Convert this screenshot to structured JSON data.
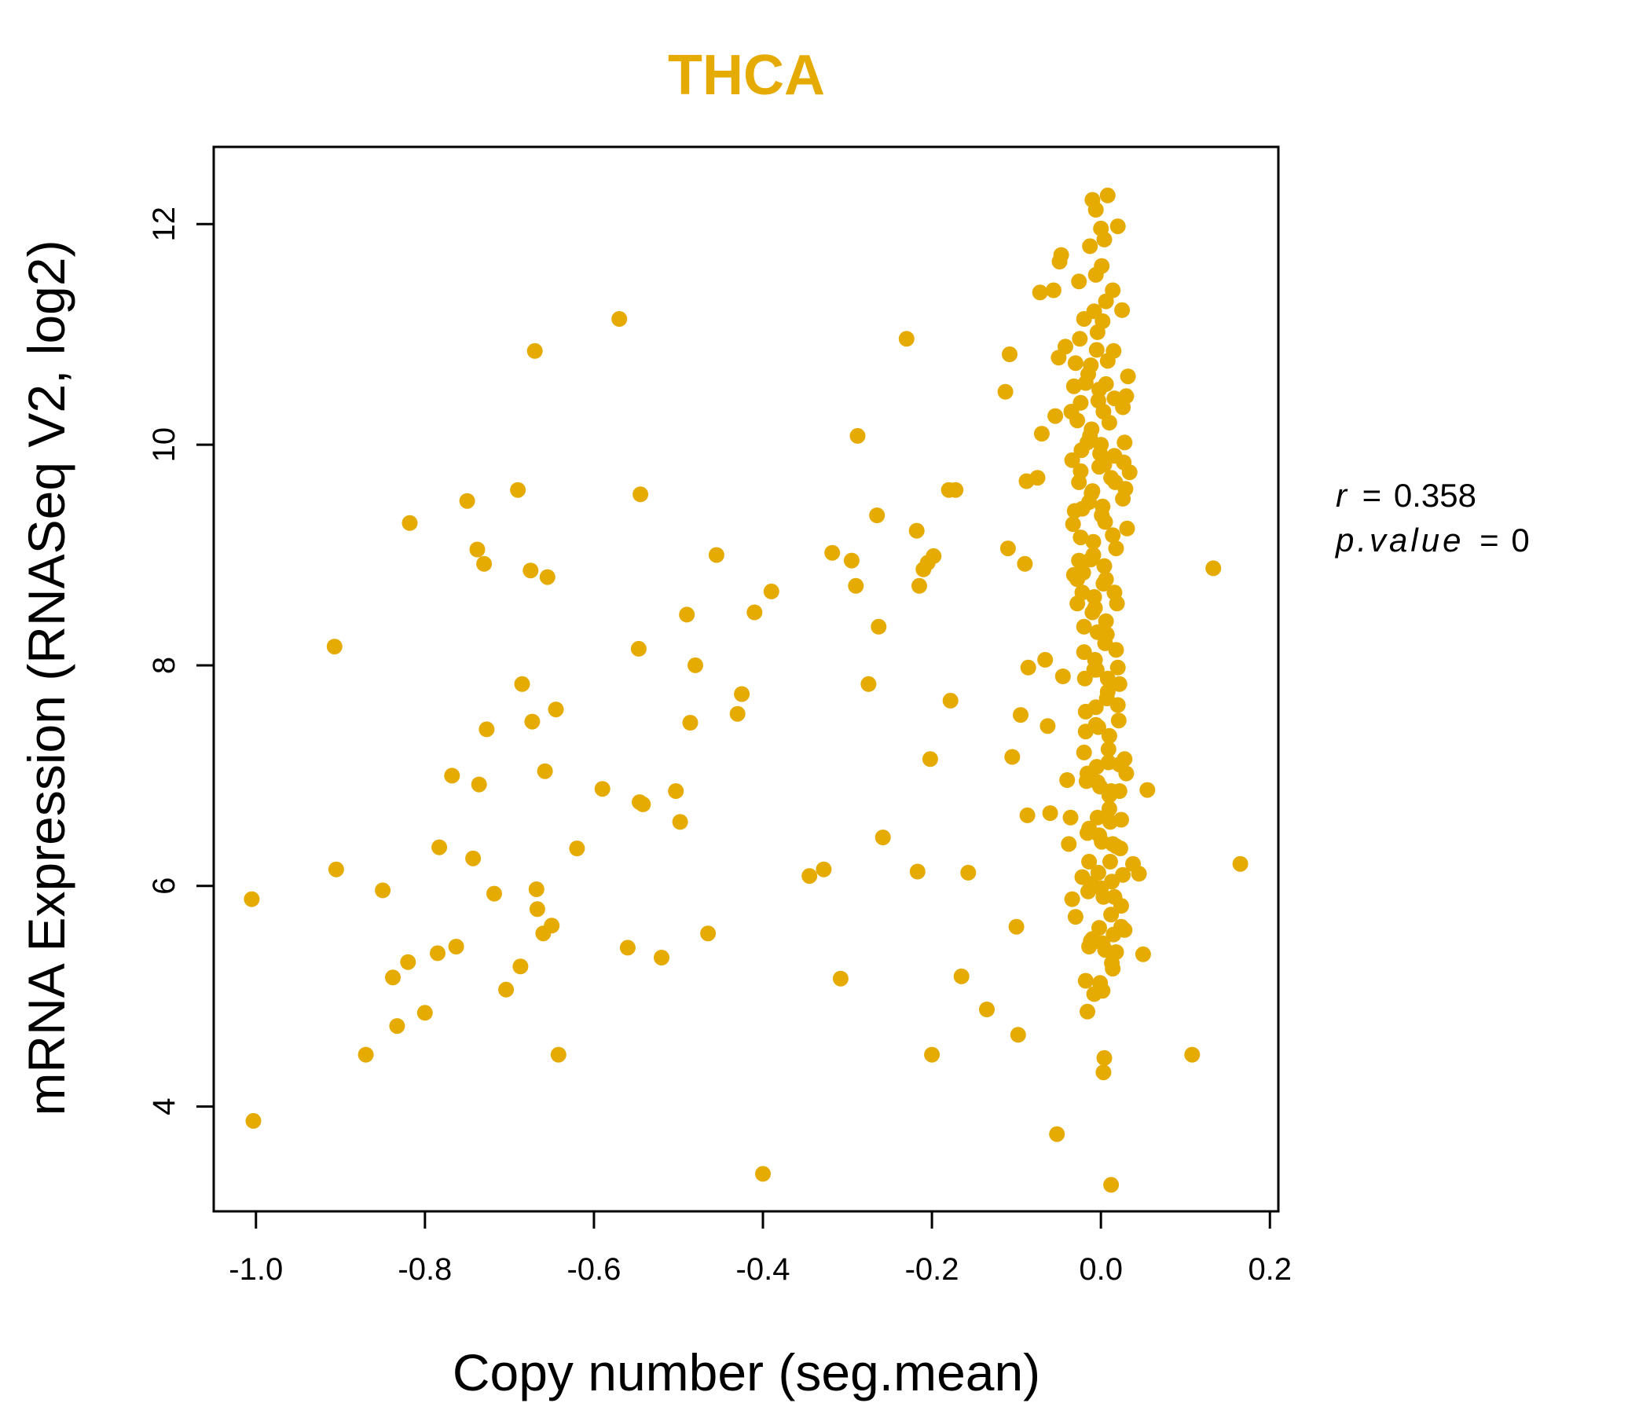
{
  "chart_data": {
    "type": "scatter",
    "title": "THCA",
    "xlabel": "Copy number (seg.mean)",
    "ylabel": "mRNA Expression (RNASeq V2, log2)",
    "xlim": [
      -1.05,
      0.21
    ],
    "ylim": [
      3.05,
      12.7
    ],
    "x_ticks": [
      -1.0,
      -0.8,
      -0.6,
      -0.4,
      -0.2,
      0.0,
      0.2
    ],
    "x_tick_labels": [
      "-1.0",
      "-0.8",
      "-0.6",
      "-0.4",
      "-0.2",
      "0.0",
      "0.2"
    ],
    "y_ticks": [
      4,
      6,
      8,
      10,
      12
    ],
    "y_tick_labels": [
      "4",
      "6",
      "8",
      "10",
      "12"
    ],
    "grid": false,
    "legend": "none",
    "point_color": "#E6AB02",
    "title_color": "#E6AB02",
    "annotation": {
      "r_symbol": "r",
      "r_value": "0.358",
      "p_symbol": "p.value",
      "p_value": "0",
      "equals": "="
    },
    "points": [
      [
        -1.005,
        5.88
      ],
      [
        -1.003,
        3.87
      ],
      [
        -0.907,
        8.17
      ],
      [
        -0.905,
        6.15
      ],
      [
        -0.87,
        4.47
      ],
      [
        -0.85,
        5.96
      ],
      [
        -0.838,
        5.17
      ],
      [
        -0.833,
        4.73
      ],
      [
        -0.82,
        5.31
      ],
      [
        -0.818,
        9.29
      ],
      [
        -0.8,
        4.85
      ],
      [
        -0.785,
        5.39
      ],
      [
        -0.783,
        6.35
      ],
      [
        -0.768,
        7.0
      ],
      [
        -0.763,
        5.45
      ],
      [
        -0.75,
        9.49
      ],
      [
        -0.743,
        6.25
      ],
      [
        -0.738,
        9.05
      ],
      [
        -0.736,
        6.92
      ],
      [
        -0.73,
        8.92
      ],
      [
        -0.727,
        7.42
      ],
      [
        -0.718,
        5.93
      ],
      [
        -0.704,
        5.06
      ],
      [
        -0.69,
        9.59
      ],
      [
        -0.687,
        5.27
      ],
      [
        -0.685,
        7.83
      ],
      [
        -0.675,
        8.86
      ],
      [
        -0.673,
        7.49
      ],
      [
        -0.67,
        10.85
      ],
      [
        -0.668,
        5.97
      ],
      [
        -0.667,
        5.79
      ],
      [
        -0.66,
        5.57
      ],
      [
        -0.658,
        7.04
      ],
      [
        -0.655,
        8.8
      ],
      [
        -0.65,
        5.64
      ],
      [
        -0.645,
        7.6
      ],
      [
        -0.642,
        4.47
      ],
      [
        -0.62,
        6.34
      ],
      [
        -0.59,
        6.88
      ],
      [
        -0.57,
        11.14
      ],
      [
        -0.56,
        5.44
      ],
      [
        -0.547,
        8.15
      ],
      [
        -0.546,
        6.76
      ],
      [
        -0.545,
        9.55
      ],
      [
        -0.542,
        6.74
      ],
      [
        -0.52,
        5.35
      ],
      [
        -0.503,
        6.86
      ],
      [
        -0.498,
        6.58
      ],
      [
        -0.49,
        8.46
      ],
      [
        -0.486,
        7.48
      ],
      [
        -0.48,
        8.0
      ],
      [
        -0.465,
        5.57
      ],
      [
        -0.455,
        9.0
      ],
      [
        -0.43,
        7.56
      ],
      [
        -0.425,
        7.74
      ],
      [
        -0.41,
        8.48
      ],
      [
        -0.4,
        3.39
      ],
      [
        -0.39,
        8.67
      ],
      [
        -0.345,
        6.09
      ],
      [
        -0.328,
        6.15
      ],
      [
        -0.318,
        9.02
      ],
      [
        -0.308,
        5.16
      ],
      [
        -0.295,
        8.95
      ],
      [
        -0.29,
        8.72
      ],
      [
        -0.288,
        10.08
      ],
      [
        -0.275,
        7.83
      ],
      [
        -0.265,
        9.36
      ],
      [
        -0.263,
        8.35
      ],
      [
        -0.258,
        6.44
      ],
      [
        -0.23,
        10.96
      ],
      [
        -0.218,
        9.22
      ],
      [
        -0.217,
        6.13
      ],
      [
        -0.215,
        8.72
      ],
      [
        -0.21,
        8.87
      ],
      [
        -0.205,
        8.93
      ],
      [
        -0.202,
        7.15
      ],
      [
        -0.2,
        4.47
      ],
      [
        -0.198,
        8.99
      ],
      [
        -0.18,
        9.59
      ],
      [
        -0.178,
        7.68
      ],
      [
        -0.172,
        9.59
      ],
      [
        -0.165,
        5.18
      ],
      [
        -0.157,
        6.12
      ],
      [
        -0.135,
        4.88
      ],
      [
        -0.113,
        10.48
      ],
      [
        -0.11,
        9.06
      ],
      [
        -0.108,
        10.82
      ],
      [
        -0.105,
        7.17
      ],
      [
        -0.1,
        5.63
      ],
      [
        -0.098,
        4.65
      ],
      [
        -0.095,
        7.55
      ],
      [
        -0.09,
        8.92
      ],
      [
        -0.088,
        9.67
      ],
      [
        -0.087,
        6.64
      ],
      [
        -0.086,
        7.98
      ],
      [
        -0.075,
        9.7
      ],
      [
        -0.072,
        11.38
      ],
      [
        -0.07,
        10.1
      ],
      [
        -0.066,
        8.05
      ],
      [
        -0.063,
        7.45
      ],
      [
        -0.06,
        6.66
      ],
      [
        -0.056,
        11.4
      ],
      [
        -0.054,
        10.26
      ],
      [
        -0.052,
        3.75
      ],
      [
        -0.05,
        10.79
      ],
      [
        -0.049,
        11.66
      ],
      [
        -0.047,
        11.72
      ],
      [
        -0.045,
        7.9
      ],
      [
        -0.042,
        10.89
      ],
      [
        -0.04,
        6.96
      ],
      [
        -0.038,
        6.38
      ],
      [
        -0.036,
        6.62
      ],
      [
        -0.034,
        5.88
      ],
      [
        -0.032,
        10.53
      ],
      [
        -0.03,
        5.72
      ],
      [
        -0.028,
        8.78
      ],
      [
        -0.026,
        8.95
      ],
      [
        -0.024,
        9.76
      ],
      [
        -0.022,
        6.08
      ],
      [
        -0.02,
        7.21
      ],
      [
        -0.018,
        5.14
      ],
      [
        -0.016,
        4.86
      ],
      [
        -0.014,
        6.22
      ],
      [
        -0.012,
        5.5
      ],
      [
        -0.01,
        12.22
      ],
      [
        -0.008,
        11.21
      ],
      [
        -0.006,
        12.13
      ],
      [
        -0.004,
        8.3
      ],
      [
        -0.002,
        9.8
      ],
      [
        0.0,
        11.96
      ],
      [
        0.002,
        5.05
      ],
      [
        0.003,
        4.31
      ],
      [
        0.004,
        4.44
      ],
      [
        0.006,
        10.55
      ],
      [
        0.008,
        12.26
      ],
      [
        0.01,
        6.82
      ],
      [
        0.012,
        3.29
      ],
      [
        0.014,
        5.25
      ],
      [
        0.016,
        9.9
      ],
      [
        0.018,
        6.36
      ],
      [
        0.02,
        11.98
      ],
      [
        0.022,
        7.83
      ],
      [
        0.024,
        5.63
      ],
      [
        0.026,
        9.51
      ],
      [
        0.028,
        7.15
      ],
      [
        0.03,
        7.02
      ],
      [
        0.032,
        10.62
      ],
      [
        0.034,
        9.75
      ],
      [
        0.038,
        6.2
      ],
      [
        0.045,
        6.11
      ],
      [
        0.05,
        5.38
      ],
      [
        0.055,
        6.87
      ],
      [
        0.108,
        4.47
      ],
      [
        0.133,
        8.88
      ],
      [
        0.165,
        6.2
      ],
      [
        -0.026,
        11.48
      ],
      [
        -0.025,
        10.96
      ],
      [
        -0.024,
        10.38
      ],
      [
        -0.023,
        9.95
      ],
      [
        -0.022,
        9.42
      ],
      [
        -0.021,
        8.84
      ],
      [
        -0.02,
        8.35
      ],
      [
        -0.019,
        7.88
      ],
      [
        -0.018,
        7.4
      ],
      [
        -0.017,
        6.95
      ],
      [
        -0.016,
        6.48
      ],
      [
        -0.015,
        5.95
      ],
      [
        -0.014,
        5.45
      ],
      [
        -0.013,
        11.8
      ],
      [
        -0.012,
        10.72
      ],
      [
        -0.011,
        10.14
      ],
      [
        -0.01,
        9.58
      ],
      [
        -0.009,
        9.12
      ],
      [
        -0.008,
        8.62
      ],
      [
        -0.007,
        8.05
      ],
      [
        -0.006,
        7.62
      ],
      [
        -0.005,
        7.08
      ],
      [
        -0.004,
        6.62
      ],
      [
        -0.003,
        6.12
      ],
      [
        -0.002,
        5.62
      ],
      [
        -0.001,
        5.12
      ],
      [
        0.001,
        11.62
      ],
      [
        0.002,
        11.12
      ],
      [
        0.003,
        10.3
      ],
      [
        0.004,
        9.82
      ],
      [
        0.005,
        9.3
      ],
      [
        0.006,
        8.78
      ],
      [
        0.007,
        8.28
      ],
      [
        0.008,
        7.76
      ],
      [
        0.009,
        7.24
      ],
      [
        0.01,
        6.7
      ],
      [
        0.011,
        6.22
      ],
      [
        0.012,
        5.74
      ],
      [
        0.013,
        5.3
      ],
      [
        0.014,
        11.4
      ],
      [
        0.015,
        10.85
      ],
      [
        0.016,
        10.42
      ],
      [
        0.017,
        9.66
      ],
      [
        0.018,
        9.06
      ],
      [
        0.019,
        8.56
      ],
      [
        0.02,
        7.98
      ],
      [
        0.021,
        7.5
      ],
      [
        0.022,
        6.86
      ],
      [
        0.023,
        6.34
      ],
      [
        0.024,
        5.82
      ],
      [
        -0.02,
        11.14
      ],
      [
        -0.018,
        10.56
      ],
      [
        -0.016,
        10.02
      ],
      [
        -0.014,
        9.48
      ],
      [
        -0.012,
        8.96
      ],
      [
        -0.01,
        8.48
      ],
      [
        -0.008,
        7.96
      ],
      [
        -0.006,
        7.46
      ],
      [
        -0.004,
        6.94
      ],
      [
        -0.002,
        6.46
      ],
      [
        0.0,
        5.98
      ],
      [
        0.002,
        5.48
      ],
      [
        0.004,
        11.86
      ],
      [
        0.006,
        11.3
      ],
      [
        0.008,
        10.76
      ],
      [
        0.01,
        10.2
      ],
      [
        0.012,
        9.7
      ],
      [
        0.014,
        9.18
      ],
      [
        0.016,
        8.66
      ],
      [
        0.018,
        8.14
      ],
      [
        0.02,
        7.64
      ],
      [
        0.022,
        7.1
      ],
      [
        0.024,
        6.6
      ],
      [
        0.026,
        6.1
      ],
      [
        0.028,
        5.6
      ],
      [
        -0.03,
        10.74
      ],
      [
        -0.028,
        10.22
      ],
      [
        -0.026,
        9.66
      ],
      [
        -0.024,
        9.16
      ],
      [
        -0.022,
        8.66
      ],
      [
        -0.02,
        8.12
      ],
      [
        -0.018,
        7.58
      ],
      [
        -0.016,
        7.02
      ],
      [
        -0.014,
        6.52
      ],
      [
        -0.012,
        6.02
      ],
      [
        -0.01,
        5.52
      ],
      [
        -0.008,
        5.02
      ],
      [
        -0.006,
        11.54
      ],
      [
        -0.004,
        11.02
      ],
      [
        -0.002,
        10.5
      ],
      [
        0.0,
        10.0
      ],
      [
        0.002,
        9.44
      ],
      [
        0.004,
        8.9
      ],
      [
        0.006,
        8.4
      ],
      [
        0.008,
        7.88
      ],
      [
        0.01,
        7.36
      ],
      [
        0.012,
        6.86
      ],
      [
        0.014,
        6.38
      ],
      [
        0.016,
        5.9
      ],
      [
        0.018,
        5.4
      ],
      [
        -0.005,
        10.86
      ],
      [
        -0.003,
        10.4
      ],
      [
        -0.001,
        9.92
      ],
      [
        0.001,
        9.36
      ],
      [
        0.003,
        8.74
      ],
      [
        0.005,
        8.2
      ],
      [
        0.007,
        7.7
      ],
      [
        0.009,
        7.12
      ],
      [
        0.011,
        6.58
      ],
      [
        0.013,
        6.04
      ],
      [
        0.015,
        5.56
      ],
      [
        -0.015,
        10.64
      ],
      [
        -0.013,
        10.08
      ],
      [
        -0.011,
        9.56
      ],
      [
        -0.009,
        9.0
      ],
      [
        -0.007,
        8.52
      ],
      [
        -0.005,
        7.96
      ],
      [
        -0.003,
        7.44
      ],
      [
        -0.001,
        6.9
      ],
      [
        0.001,
        6.4
      ],
      [
        0.003,
        5.9
      ],
      [
        0.005,
        5.42
      ],
      [
        0.025,
        11.22
      ],
      [
        0.026,
        10.34
      ],
      [
        0.027,
        9.84
      ],
      [
        -0.035,
        10.3
      ],
      [
        -0.034,
        9.86
      ],
      [
        -0.033,
        9.28
      ],
      [
        -0.032,
        8.82
      ],
      [
        -0.031,
        9.4
      ],
      [
        0.028,
        10.02
      ],
      [
        0.029,
        9.6
      ],
      [
        0.03,
        10.44
      ],
      [
        0.031,
        9.24
      ],
      [
        -0.028,
        8.56
      ]
    ]
  }
}
